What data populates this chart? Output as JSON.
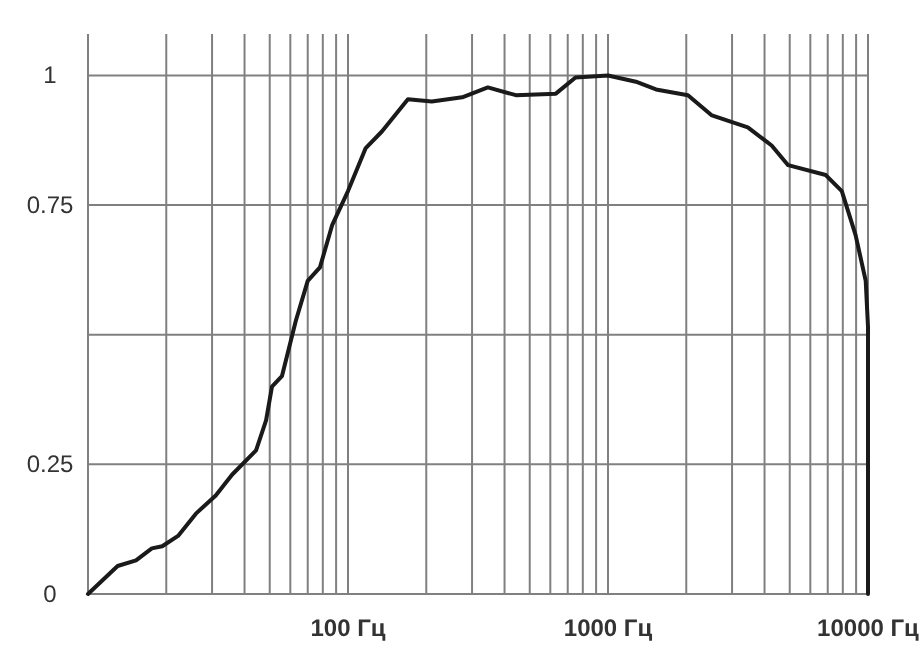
{
  "chart_data": {
    "type": "line",
    "log": "x",
    "grid": true,
    "marker": "none",
    "line_style": "solid",
    "xlim": [
      10,
      10000
    ],
    "ylim": [
      0,
      1.08
    ],
    "xticks": [
      {
        "value": 10,
        "label": null
      },
      {
        "value": 20,
        "label": null
      },
      {
        "value": 30,
        "label": null
      },
      {
        "value": 40,
        "label": null
      },
      {
        "value": 50,
        "label": null
      },
      {
        "value": 60,
        "label": null
      },
      {
        "value": 70,
        "label": null
      },
      {
        "value": 80,
        "label": null
      },
      {
        "value": 90,
        "label": null
      },
      {
        "value": 100,
        "label": "100 Гц"
      },
      {
        "value": 200,
        "label": null
      },
      {
        "value": 300,
        "label": null
      },
      {
        "value": 400,
        "label": null
      },
      {
        "value": 500,
        "label": null
      },
      {
        "value": 600,
        "label": null
      },
      {
        "value": 700,
        "label": null
      },
      {
        "value": 800,
        "label": null
      },
      {
        "value": 900,
        "label": null
      },
      {
        "value": 1000,
        "label": "1000 Гц"
      },
      {
        "value": 2000,
        "label": null
      },
      {
        "value": 3000,
        "label": null
      },
      {
        "value": 4000,
        "label": null
      },
      {
        "value": 5000,
        "label": null
      },
      {
        "value": 6000,
        "label": null
      },
      {
        "value": 7000,
        "label": null
      },
      {
        "value": 8000,
        "label": null
      },
      {
        "value": 9000,
        "label": null
      },
      {
        "value": 10000,
        "label": "10000 Гц"
      }
    ],
    "yticks": [
      0,
      0.25,
      {
        "value": 0.5,
        "label": null
      },
      0.75,
      1
    ],
    "series": [
      {
        "color": "#1a1a1a",
        "x": [
          10,
          13,
          15.3,
          17.6,
          19.3,
          22.2,
          26,
          31,
          35.8,
          44.3,
          48.4,
          51,
          55.7,
          63,
          70,
          78,
          87,
          100,
          117,
          135,
          170,
          210,
          275,
          345,
          442,
          630,
          750,
          1000,
          1280,
          1530,
          2030,
          2510,
          3450,
          4260,
          4930,
          6880,
          7930,
          8960,
          9800,
          10000,
          10000
        ],
        "values": [
          0,
          0.054,
          0.065,
          0.088,
          0.092,
          0.112,
          0.155,
          0.19,
          0.23,
          0.277,
          0.335,
          0.4,
          0.42,
          0.527,
          0.604,
          0.63,
          0.712,
          0.777,
          0.86,
          0.892,
          0.954,
          0.95,
          0.958,
          0.977,
          0.962,
          0.965,
          0.996,
          1,
          0.988,
          0.973,
          0.962,
          0.923,
          0.9,
          0.865,
          0.827,
          0.808,
          0.777,
          0.692,
          0.604,
          0.515,
          0
        ]
      }
    ]
  }
}
